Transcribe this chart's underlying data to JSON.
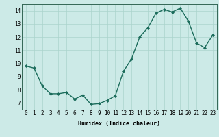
{
  "x": [
    0,
    1,
    2,
    3,
    4,
    5,
    6,
    7,
    8,
    9,
    10,
    11,
    12,
    13,
    14,
    15,
    16,
    17,
    18,
    19,
    20,
    21,
    22,
    23
  ],
  "y": [
    9.8,
    9.65,
    8.3,
    7.7,
    7.7,
    7.8,
    7.3,
    7.6,
    6.9,
    6.95,
    7.2,
    7.55,
    9.4,
    10.35,
    12.0,
    12.7,
    13.8,
    14.1,
    13.9,
    14.2,
    13.2,
    11.55,
    11.2,
    12.15
  ],
  "line_color": "#1a6b5a",
  "marker": "D",
  "marker_size": 2,
  "bg_color": "#cceae7",
  "grid_color": "#aad4cc",
  "xlabel": "Humidex (Indice chaleur)",
  "xlim": [
    -0.5,
    23.5
  ],
  "ylim": [
    6.5,
    14.5
  ],
  "yticks": [
    7,
    8,
    9,
    10,
    11,
    12,
    13,
    14
  ],
  "xticks": [
    0,
    1,
    2,
    3,
    4,
    5,
    6,
    7,
    8,
    9,
    10,
    11,
    12,
    13,
    14,
    15,
    16,
    17,
    18,
    19,
    20,
    21,
    22,
    23
  ],
  "xlabel_fontsize": 6,
  "tick_fontsize": 5.5,
  "linewidth": 1.0
}
